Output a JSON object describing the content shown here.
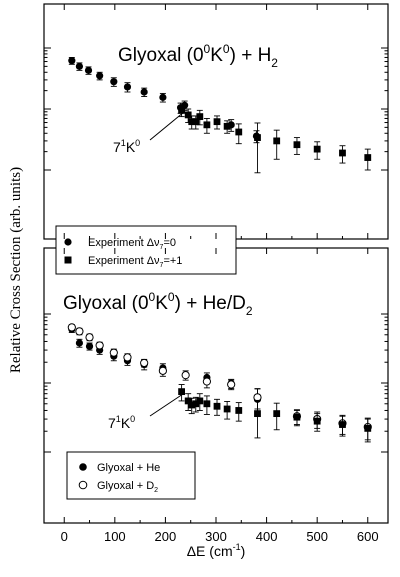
{
  "chart_data": [
    {
      "type": "scatter",
      "title": "Glyoxal (0⁰K⁰) + H₂",
      "title_parts": [
        "Glyoxal (0",
        "0",
        "K",
        "0",
        ") + H",
        "2"
      ],
      "annotation": "7¹K⁰",
      "annotation_parts": [
        "7",
        "1",
        "K",
        "0"
      ],
      "ylabel": "Relative Cross Section (arb. units)",
      "y_scale": "log",
      "ylim": [
        0.1,
        10
      ],
      "legend_placement": "bottom-left",
      "series": [
        {
          "name": "Experiment Δν₇=0",
          "legend_parts": [
            "Experiment Δν",
            "7",
            "=0"
          ],
          "marker": "filled-circle",
          "points": [
            {
              "x": 15,
              "y": 6.2,
              "err": 0.8
            },
            {
              "x": 30,
              "y": 5.0,
              "err": 0.7
            },
            {
              "x": 48,
              "y": 4.3,
              "err": 0.6
            },
            {
              "x": 70,
              "y": 3.5,
              "err": 0.5
            },
            {
              "x": 98,
              "y": 2.8,
              "err": 0.45
            },
            {
              "x": 125,
              "y": 2.3,
              "err": 0.4
            },
            {
              "x": 158,
              "y": 1.9,
              "err": 0.3
            },
            {
              "x": 195,
              "y": 1.55,
              "err": 0.25
            },
            {
              "x": 230,
              "y": 1.05,
              "err": 0.2
            },
            {
              "x": 238,
              "y": 1.15,
              "err": 0.2
            },
            {
              "x": 330,
              "y": 0.55,
              "err": 0.12
            },
            {
              "x": 380,
              "y": 0.36,
              "err": 0.08
            }
          ]
        },
        {
          "name": "Experiment Δν₇=+1",
          "legend_parts": [
            "Experiment Δν",
            "7",
            "=+1"
          ],
          "marker": "filled-square",
          "points": [
            {
              "x": 232,
              "y": 0.95,
              "err": 0.2
            },
            {
              "x": 245,
              "y": 0.8,
              "err": 0.2
            },
            {
              "x": 252,
              "y": 0.62,
              "err": 0.15
            },
            {
              "x": 260,
              "y": 0.62,
              "err": 0.15
            },
            {
              "x": 268,
              "y": 0.75,
              "err": 0.2
            },
            {
              "x": 282,
              "y": 0.55,
              "err": 0.15
            },
            {
              "x": 302,
              "y": 0.62,
              "err": 0.15
            },
            {
              "x": 322,
              "y": 0.52,
              "err": 0.12
            },
            {
              "x": 345,
              "y": 0.42,
              "err": 0.15
            },
            {
              "x": 382,
              "y": 0.34,
              "err": 0.25
            },
            {
              "x": 420,
              "y": 0.3,
              "err": 0.15
            },
            {
              "x": 460,
              "y": 0.26,
              "err": 0.08
            },
            {
              "x": 500,
              "y": 0.22,
              "err": 0.07
            },
            {
              "x": 550,
              "y": 0.19,
              "err": 0.06
            },
            {
              "x": 600,
              "y": 0.16,
              "err": 0.06
            }
          ]
        }
      ]
    },
    {
      "type": "scatter",
      "title": "Glyoxal (0⁰K⁰) + He/D₂",
      "title_parts": [
        "Glyoxal (0",
        "0",
        "K",
        "0",
        ") + He/D",
        "2"
      ],
      "annotation": "7¹K⁰",
      "annotation_parts": [
        "7",
        "1",
        "K",
        "0"
      ],
      "xlabel": "ΔE (cm⁻¹)",
      "xlabel_parts": [
        "ΔE (cm",
        "-1",
        ")"
      ],
      "x_ticks": [
        0,
        100,
        200,
        300,
        400,
        500,
        600
      ],
      "xlim": [
        -40,
        640
      ],
      "y_scale": "log",
      "ylim": [
        0.1,
        10
      ],
      "legend_placement": "bottom-left",
      "series": [
        {
          "name": "Glyoxal + He",
          "legend_parts": [
            "Glyoxal + He",
            "",
            ""
          ],
          "marker": "filled-circle",
          "points": [
            {
              "x": 15,
              "y": 6.0,
              "err": 0.6
            },
            {
              "x": 30,
              "y": 3.8,
              "err": 0.5
            },
            {
              "x": 50,
              "y": 3.4,
              "err": 0.4
            },
            {
              "x": 70,
              "y": 3.0,
              "err": 0.4
            },
            {
              "x": 98,
              "y": 2.45,
              "err": 0.35
            },
            {
              "x": 125,
              "y": 2.1,
              "err": 0.3
            },
            {
              "x": 158,
              "y": 1.85,
              "err": 0.3
            },
            {
              "x": 195,
              "y": 1.65,
              "err": 0.25
            },
            {
              "x": 282,
              "y": 1.2,
              "err": 0.2
            },
            {
              "x": 330,
              "y": 0.98,
              "err": 0.15
            },
            {
              "x": 382,
              "y": 0.58,
              "err": 0.25
            }
          ]
        },
        {
          "name": "Glyoxal + D₂",
          "legend_parts": [
            "Glyoxal + D",
            "2",
            ""
          ],
          "marker": "open-circle",
          "points": [
            {
              "x": 15,
              "y": 6.4,
              "err": 0.6
            },
            {
              "x": 30,
              "y": 5.6,
              "err": 0.6
            },
            {
              "x": 50,
              "y": 4.6,
              "err": 0.5
            },
            {
              "x": 70,
              "y": 3.5,
              "err": 0.4
            },
            {
              "x": 98,
              "y": 2.75,
              "err": 0.35
            },
            {
              "x": 125,
              "y": 2.35,
              "err": 0.3
            },
            {
              "x": 158,
              "y": 1.95,
              "err": 0.25
            },
            {
              "x": 195,
              "y": 1.5,
              "err": 0.25
            },
            {
              "x": 240,
              "y": 1.3,
              "err": 0.2
            },
            {
              "x": 282,
              "y": 1.05,
              "err": 0.2
            },
            {
              "x": 330,
              "y": 0.95,
              "err": 0.15
            },
            {
              "x": 382,
              "y": 0.62,
              "err": 0.2
            },
            {
              "x": 460,
              "y": 0.33,
              "err": 0.08
            },
            {
              "x": 500,
              "y": 0.3,
              "err": 0.08
            },
            {
              "x": 550,
              "y": 0.26,
              "err": 0.08
            },
            {
              "x": 600,
              "y": 0.23,
              "err": 0.08
            }
          ]
        },
        {
          "name": "",
          "marker": "filled-square",
          "points": [
            {
              "x": 232,
              "y": 0.75,
              "err": 0.2
            },
            {
              "x": 245,
              "y": 0.55,
              "err": 0.15
            },
            {
              "x": 252,
              "y": 0.48,
              "err": 0.12
            },
            {
              "x": 260,
              "y": 0.5,
              "err": 0.12
            },
            {
              "x": 268,
              "y": 0.55,
              "err": 0.15
            },
            {
              "x": 282,
              "y": 0.5,
              "err": 0.15
            },
            {
              "x": 302,
              "y": 0.46,
              "err": 0.12
            },
            {
              "x": 322,
              "y": 0.42,
              "err": 0.12
            },
            {
              "x": 345,
              "y": 0.4,
              "err": 0.12
            },
            {
              "x": 382,
              "y": 0.36,
              "err": 0.2
            },
            {
              "x": 420,
              "y": 0.36,
              "err": 0.15
            },
            {
              "x": 460,
              "y": 0.32,
              "err": 0.08
            },
            {
              "x": 500,
              "y": 0.28,
              "err": 0.08
            },
            {
              "x": 550,
              "y": 0.25,
              "err": 0.08
            },
            {
              "x": 600,
              "y": 0.22,
              "err": 0.08
            }
          ]
        }
      ]
    }
  ]
}
